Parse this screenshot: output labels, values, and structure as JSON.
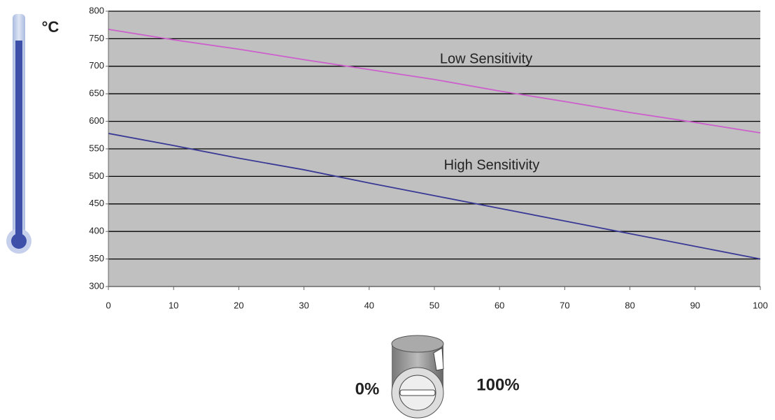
{
  "chart_data": {
    "type": "line",
    "y_label": "°C",
    "x": [
      0,
      10,
      20,
      30,
      40,
      50,
      60,
      70,
      80,
      90,
      100
    ],
    "series": [
      {
        "name": "Low Sensitivity",
        "color": "#cc5fcc",
        "values": [
          767,
          748,
          731,
          712,
          694,
          676,
          655,
          636,
          616,
          598,
          579
        ]
      },
      {
        "name": "High Sensitivity",
        "color": "#3a3a96",
        "values": [
          578,
          556,
          533,
          512,
          488,
          465,
          442,
          419,
          396,
          373,
          350
        ]
      }
    ],
    "xlim": [
      0,
      100
    ],
    "xticks": [
      0,
      10,
      20,
      30,
      40,
      50,
      60,
      70,
      80,
      90,
      100
    ],
    "ylim": [
      300,
      800
    ],
    "yticks": [
      300,
      350,
      400,
      450,
      500,
      550,
      600,
      650,
      700,
      750,
      800
    ],
    "grid": true,
    "knob_min_label": "0%",
    "knob_max_label": "100%"
  }
}
